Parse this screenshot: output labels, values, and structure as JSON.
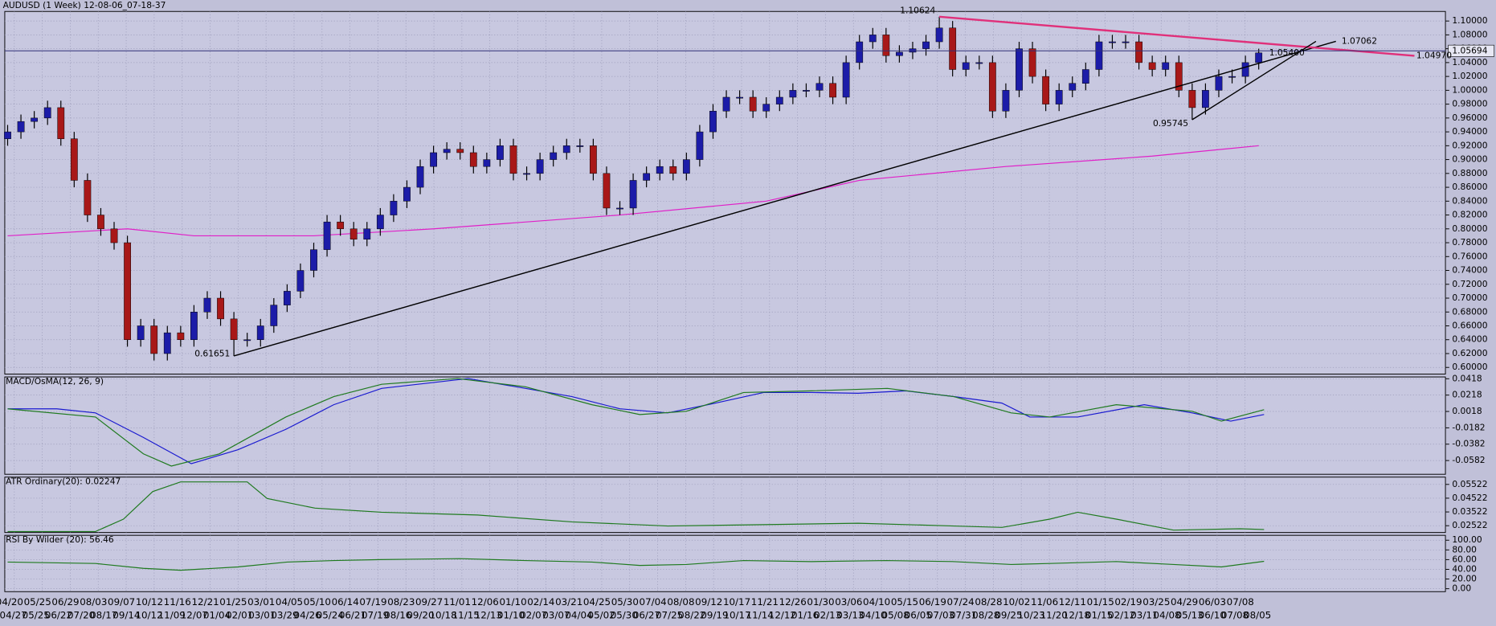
{
  "chart_data": [
    {
      "type": "candlestick",
      "title": "AUDUSD (1 Week) 12-08-06_07-18-37",
      "up_color": "#1c1ca8",
      "down_color": "#a81818",
      "x_labels": [
        "04/20",
        "05/25",
        "06/29",
        "08/03",
        "09/07",
        "10/12",
        "11/16",
        "12/21",
        "01/25",
        "03/01",
        "04/05",
        "05/10",
        "06/14",
        "07/19",
        "08/23",
        "09/27",
        "11/01",
        "12/06",
        "01/10",
        "02/14",
        "03/21",
        "04/25",
        "05/30",
        "07/04",
        "08/08",
        "09/12",
        "10/17",
        "11/21",
        "12/26",
        "01/30",
        "03/06",
        "04/10",
        "05/15",
        "06/19",
        "07/24",
        "08/28",
        "10/02",
        "11/06",
        "12/11",
        "01/15",
        "02/19",
        "03/25",
        "04/29",
        "06/03",
        "07/08"
      ],
      "x_labels_2": [
        "04/27",
        "05/25",
        "06/22",
        "07/20",
        "08/17",
        "09/14",
        "10/12",
        "11/09",
        "12/07",
        "01/04",
        "02/01",
        "03/01",
        "03/29",
        "04/26",
        "05/24",
        "06/21",
        "07/19",
        "08/16",
        "09/20",
        "10/18",
        "11/15",
        "12/13",
        "01/10",
        "02/07",
        "03/07",
        "04/04",
        "05/02",
        "05/30",
        "06/27",
        "07/25",
        "08/22",
        "09/19",
        "10/17",
        "11/14",
        "12/12",
        "01/16",
        "02/13",
        "03/13",
        "04/10",
        "05/08",
        "06/05",
        "07/03",
        "07/31",
        "08/28",
        "09/25",
        "10/23",
        "11/20",
        "12/18",
        "01/15",
        "02/12",
        "03/11",
        "04/08",
        "05/13",
        "06/10",
        "07/08",
        "08/05"
      ],
      "open": [
        0.93,
        0.94,
        0.955,
        0.96,
        0.975,
        0.93,
        0.87,
        0.82,
        0.8,
        0.78,
        0.64,
        0.66,
        0.62,
        0.65,
        0.64,
        0.68,
        0.7,
        0.67,
        0.64,
        0.64,
        0.66,
        0.69,
        0.71,
        0.74,
        0.77,
        0.81,
        0.8,
        0.785,
        0.8,
        0.82,
        0.84,
        0.86,
        0.89,
        0.91,
        0.915,
        0.91,
        0.89,
        0.9,
        0.92,
        0.88,
        0.88,
        0.9,
        0.91,
        0.92,
        0.92,
        0.88,
        0.83,
        0.83,
        0.87,
        0.88,
        0.89,
        0.88,
        0.9,
        0.94,
        0.97,
        0.99,
        0.99,
        0.97,
        0.98,
        0.99,
        1.0,
        1.0,
        1.01,
        0.99,
        1.04,
        1.07,
        1.08,
        1.05,
        1.055,
        1.06,
        1.07,
        1.09,
        1.03,
        1.04,
        1.04,
        0.97,
        1.0,
        1.06,
        1.02,
        0.98,
        1.0,
        1.01,
        1.03,
        1.07,
        1.07,
        1.07,
        1.04,
        1.03,
        1.04,
        1.0,
        0.975,
        1.0,
        1.02,
        1.02,
        1.04
      ],
      "high": [
        0.95,
        0.965,
        0.97,
        0.985,
        0.985,
        0.94,
        0.88,
        0.83,
        0.81,
        0.79,
        0.67,
        0.67,
        0.66,
        0.66,
        0.69,
        0.71,
        0.71,
        0.68,
        0.65,
        0.67,
        0.7,
        0.72,
        0.75,
        0.78,
        0.82,
        0.82,
        0.81,
        0.81,
        0.83,
        0.85,
        0.87,
        0.9,
        0.92,
        0.925,
        0.925,
        0.92,
        0.91,
        0.93,
        0.93,
        0.89,
        0.91,
        0.92,
        0.93,
        0.93,
        0.93,
        0.89,
        0.84,
        0.88,
        0.89,
        0.9,
        0.9,
        0.91,
        0.95,
        0.98,
        1.0,
        1.0,
        1.0,
        0.99,
        1.0,
        1.01,
        1.01,
        1.02,
        1.02,
        1.05,
        1.08,
        1.09,
        1.09,
        1.065,
        1.07,
        1.08,
        1.10624,
        1.1,
        1.05,
        1.05,
        1.05,
        1.01,
        1.07,
        1.07,
        1.03,
        1.01,
        1.02,
        1.04,
        1.08,
        1.08,
        1.08,
        1.08,
        1.05,
        1.05,
        1.05,
        1.01,
        1.01,
        1.03,
        1.03,
        1.05,
        1.06
      ],
      "low": [
        0.92,
        0.93,
        0.945,
        0.95,
        0.92,
        0.86,
        0.81,
        0.79,
        0.77,
        0.63,
        0.63,
        0.61,
        0.61,
        0.63,
        0.63,
        0.67,
        0.66,
        0.61651,
        0.63,
        0.63,
        0.65,
        0.68,
        0.7,
        0.73,
        0.76,
        0.79,
        0.775,
        0.775,
        0.79,
        0.81,
        0.83,
        0.85,
        0.88,
        0.9,
        0.9,
        0.88,
        0.88,
        0.89,
        0.87,
        0.87,
        0.87,
        0.89,
        0.9,
        0.91,
        0.87,
        0.82,
        0.82,
        0.82,
        0.86,
        0.87,
        0.87,
        0.87,
        0.89,
        0.93,
        0.96,
        0.98,
        0.96,
        0.96,
        0.97,
        0.98,
        0.99,
        0.99,
        0.98,
        0.98,
        1.03,
        1.06,
        1.04,
        1.04,
        1.045,
        1.05,
        1.06,
        1.02,
        1.02,
        1.03,
        0.96,
        0.96,
        0.99,
        1.01,
        0.97,
        0.97,
        0.99,
        1.0,
        1.02,
        1.06,
        1.06,
        1.03,
        1.02,
        1.02,
        0.99,
        0.95745,
        0.965,
        0.99,
        1.01,
        1.01,
        1.03
      ],
      "close": [
        0.94,
        0.955,
        0.96,
        0.975,
        0.93,
        0.87,
        0.82,
        0.8,
        0.78,
        0.64,
        0.66,
        0.62,
        0.65,
        0.64,
        0.68,
        0.7,
        0.67,
        0.64,
        0.64,
        0.66,
        0.69,
        0.71,
        0.74,
        0.77,
        0.81,
        0.8,
        0.785,
        0.8,
        0.82,
        0.84,
        0.86,
        0.89,
        0.91,
        0.915,
        0.91,
        0.89,
        0.9,
        0.92,
        0.88,
        0.88,
        0.9,
        0.91,
        0.92,
        0.92,
        0.88,
        0.83,
        0.83,
        0.87,
        0.88,
        0.89,
        0.88,
        0.9,
        0.94,
        0.97,
        0.99,
        0.99,
        0.97,
        0.98,
        0.99,
        1.0,
        1.0,
        1.01,
        0.99,
        1.04,
        1.07,
        1.08,
        1.05,
        1.055,
        1.06,
        1.07,
        1.09,
        1.03,
        1.04,
        1.04,
        0.97,
        1.0,
        1.06,
        1.02,
        0.98,
        1.0,
        1.01,
        1.03,
        1.07,
        1.07,
        1.07,
        1.04,
        1.03,
        1.04,
        1.0,
        0.975,
        1.0,
        1.02,
        1.02,
        1.04,
        1.054
      ],
      "overlays": [
        {
          "color": "#e020c8",
          "x": [
            0,
            9,
            14,
            23,
            32,
            46,
            57,
            64,
            75,
            86,
            94
          ],
          "values": [
            0.79,
            0.8,
            0.79,
            0.79,
            0.8,
            0.82,
            0.84,
            0.87,
            0.89,
            0.905,
            0.92
          ]
        }
      ],
      "trendlines": [
        {
          "color": "#000000",
          "x": [
            17,
            99.8
          ],
          "values": [
            0.61651,
            1.07062
          ]
        },
        {
          "color": "#e0307a",
          "x": [
            70,
            105.7
          ],
          "values": [
            1.10624,
            1.0497
          ]
        },
        {
          "color": "#000000",
          "x": [
            89,
            98.3
          ],
          "values": [
            0.95745,
            1.07062
          ]
        }
      ],
      "annotations": [
        {
          "x": 17,
          "value": 0.61651
        },
        {
          "x": 70,
          "value": 1.10624
        },
        {
          "x": 89,
          "value": 0.95745
        },
        {
          "x": 99.8,
          "value": 1.07062
        },
        {
          "x": 105.7,
          "value": 1.0497,
          "label": "1.04970"
        },
        {
          "x": 94.5,
          "value": 1.054,
          "label": "1.05400"
        }
      ],
      "price_line": 1.05694,
      "ylim": [
        0.5904,
        1.1138
      ],
      "yticks": [
        {
          "value": 0.6,
          "label": "0.60000"
        },
        {
          "value": 0.62,
          "label": "0.62000"
        },
        {
          "value": 0.64,
          "label": "0.64000"
        },
        {
          "value": 0.66,
          "label": "0.66000"
        },
        {
          "value": 0.68,
          "label": "0.68000"
        },
        {
          "value": 0.7,
          "label": "0.70000"
        },
        {
          "value": 0.72,
          "label": "0.72000"
        },
        {
          "value": 0.74,
          "label": "0.74000"
        },
        {
          "value": 0.76,
          "label": "0.76000"
        },
        {
          "value": 0.78,
          "label": "0.78000"
        },
        {
          "value": 0.8,
          "label": "0.80000"
        },
        {
          "value": 0.82,
          "label": "0.82000"
        },
        {
          "value": 0.84,
          "label": "0.84000"
        },
        {
          "value": 0.86,
          "label": "0.86000"
        },
        {
          "value": 0.88,
          "label": "0.88000"
        },
        {
          "value": 0.9,
          "label": "0.90000"
        },
        {
          "value": 0.92,
          "label": "0.92000"
        },
        {
          "value": 0.94,
          "label": "0.94000"
        },
        {
          "value": 0.96,
          "label": "0.96000"
        },
        {
          "value": 0.98,
          "label": "0.98000"
        },
        {
          "value": 1.0,
          "label": "1.00000"
        },
        {
          "value": 1.02,
          "label": "1.02000"
        },
        {
          "value": 1.04,
          "label": "1.04000"
        },
        {
          "value": 1.06,
          "label": "1.06000"
        },
        {
          "value": 1.08,
          "label": "1.08000"
        },
        {
          "value": 1.1,
          "label": "1.10000"
        }
      ],
      "grid": true
    },
    {
      "type": "line",
      "title": "MACD/OsMA(12, 26, 9)",
      "series": [
        {
          "color": "#1a1ad0",
          "x": [
            0,
            3.7,
            6.6,
            10.2,
            13.8,
            17.3,
            20.9,
            24.5,
            28.1,
            34.6,
            38.9,
            42.4,
            46,
            49.6,
            53.2,
            56.8,
            60.4,
            63.9,
            67.5,
            71.1,
            74.7,
            76.8,
            80.4,
            85.4,
            89,
            91.9,
            94.4
          ],
          "values": [
            0.005,
            0.005,
            0,
            -0.03,
            -0.062,
            -0.045,
            -0.02,
            0.01,
            0.03,
            0.042,
            0.03,
            0.02,
            0.005,
            0,
            0.012,
            0.025,
            0.025,
            0.024,
            0.027,
            0.02,
            0.012,
            -0.005,
            -0.005,
            0.01,
            0,
            -0.01,
            -0.002
          ]
        },
        {
          "color": "#1f7a1f",
          "x": [
            0,
            6.6,
            10.2,
            12.3,
            15.9,
            20.9,
            24.5,
            28.1,
            33.8,
            38.9,
            43.9,
            47.5,
            51,
            55.3,
            60.4,
            66.1,
            71.1,
            75.4,
            78.3,
            83.3,
            89,
            91.2,
            94.4
          ],
          "values": [
            0.005,
            -0.005,
            -0.05,
            -0.065,
            -0.05,
            -0.005,
            0.02,
            0.035,
            0.042,
            0.032,
            0.01,
            -0.002,
            0.002,
            0.025,
            0.027,
            0.03,
            0.02,
            0,
            -0.005,
            0.01,
            0.002,
            -0.01,
            0.004
          ]
        }
      ],
      "ylim": [
        -0.075,
        0.044
      ],
      "yticks": [
        0.0418,
        0.0218,
        0.0018,
        -0.0182,
        -0.0382,
        -0.0582
      ],
      "grid": true
    },
    {
      "type": "line",
      "title": "ATR Ordinary(20): 0.02247",
      "series": [
        {
          "color": "#1f7a1f",
          "x": [
            0,
            6.6,
            8.7,
            10.9,
            13,
            18,
            19.5,
            23.1,
            28.1,
            35.3,
            42.4,
            49.6,
            56.8,
            63.9,
            71.1,
            74.7,
            78.3,
            80.4,
            83.3,
            87.6,
            92.6,
            94.4
          ],
          "values": [
            0.021,
            0.021,
            0.03,
            0.05,
            0.057,
            0.057,
            0.045,
            0.038,
            0.035,
            0.033,
            0.028,
            0.025,
            0.026,
            0.027,
            0.025,
            0.024,
            0.03,
            0.035,
            0.03,
            0.022,
            0.023,
            0.02247
          ]
        }
      ],
      "ylim": [
        0.0203,
        0.0605
      ],
      "yticks": [
        0.05522,
        0.04522,
        0.03522,
        0.02522
      ],
      "grid": true
    },
    {
      "type": "line",
      "title": "RSI By Wilder (20): 56.46",
      "series": [
        {
          "color": "#1f7a1f",
          "x": [
            0,
            6.6,
            10.2,
            13,
            17.3,
            21,
            24.5,
            28,
            34,
            38.9,
            43.9,
            47.5,
            51,
            55.3,
            60.4,
            66,
            71,
            75.4,
            78.3,
            83.3,
            87.6,
            91.2,
            94.4
          ],
          "values": [
            55,
            52,
            42,
            38,
            45,
            55,
            58,
            60,
            62,
            58,
            55,
            48,
            50,
            58,
            56,
            58,
            56,
            50,
            52,
            56,
            50,
            45,
            56.46
          ]
        }
      ],
      "ylim": [
        -6,
        110
      ],
      "yticks": [
        {
          "value": 100,
          "label": "100.00"
        },
        {
          "value": 80,
          "label": "80.00"
        },
        {
          "value": 60,
          "label": "60.00"
        },
        {
          "value": 40,
          "label": "40.00"
        },
        {
          "value": 20,
          "label": "20.00"
        },
        {
          "value": 0,
          "label": "0.00"
        }
      ],
      "grid": true
    }
  ]
}
